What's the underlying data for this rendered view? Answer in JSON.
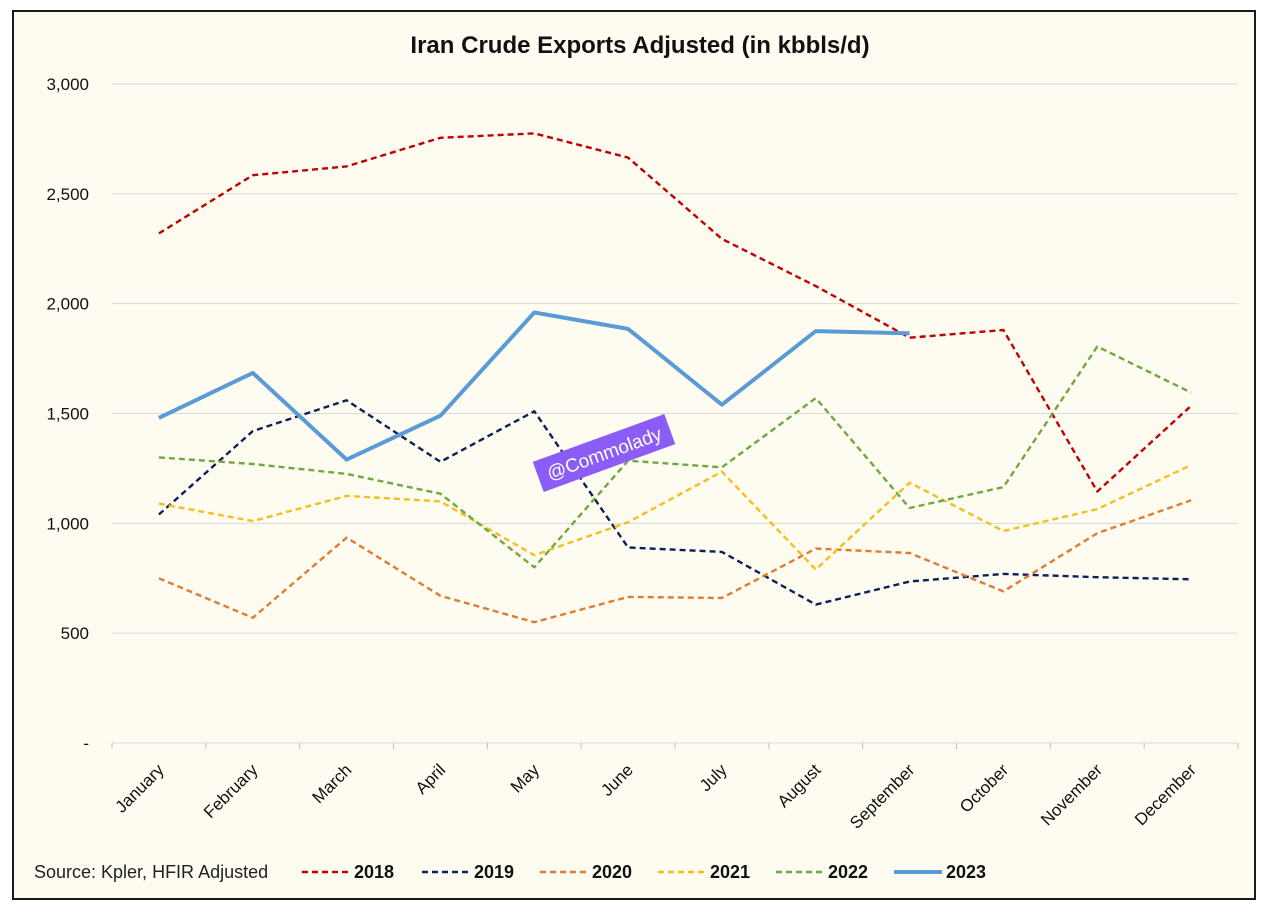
{
  "chart_data": {
    "type": "line",
    "title": "Iran Crude Exports Adjusted (in kbbls/d)",
    "xlabel": "",
    "ylabel": "",
    "source_note": "Source: Kpler, HFIR Adjusted",
    "watermark": "@Commolady",
    "categories": [
      "January",
      "February",
      "March",
      "April",
      "May",
      "June",
      "July",
      "August",
      "September",
      "October",
      "November",
      "December"
    ],
    "ylim": [
      0,
      3000
    ],
    "yticks": [
      {
        "value": 0,
        "label": "-"
      },
      {
        "value": 500,
        "label": "500"
      },
      {
        "value": 1000,
        "label": "1,000"
      },
      {
        "value": 1500,
        "label": "1,500"
      },
      {
        "value": 2000,
        "label": "2,000"
      },
      {
        "value": 2500,
        "label": "2,500"
      },
      {
        "value": 3000,
        "label": "3,000"
      }
    ],
    "grid": true,
    "legend_position": "bottom",
    "series": [
      {
        "name": "2018",
        "color": "#c00000",
        "style": "dashed",
        "values": [
          2320,
          2585,
          2625,
          2755,
          2775,
          2665,
          2295,
          2080,
          1845,
          1880,
          1145,
          1535
        ]
      },
      {
        "name": "2019",
        "color": "#0d1f5c",
        "style": "dashed",
        "values": [
          1040,
          1420,
          1560,
          1280,
          1510,
          890,
          870,
          630,
          735,
          770,
          755,
          745
        ]
      },
      {
        "name": "2020",
        "color": "#e07b32",
        "style": "dashed",
        "values": [
          750,
          570,
          935,
          670,
          550,
          665,
          660,
          885,
          865,
          690,
          955,
          1105
        ]
      },
      {
        "name": "2021",
        "color": "#f5be1e",
        "style": "dashed",
        "values": [
          1090,
          1010,
          1125,
          1100,
          855,
          1005,
          1235,
          790,
          1185,
          965,
          1065,
          1265
        ]
      },
      {
        "name": "2022",
        "color": "#6fa83f",
        "style": "dashed",
        "values": [
          1300,
          1270,
          1225,
          1135,
          800,
          1285,
          1255,
          1570,
          1070,
          1165,
          1805,
          1595
        ]
      },
      {
        "name": "2023",
        "color": "#5b9bd5",
        "style": "solid",
        "values": [
          1480,
          1685,
          1290,
          1490,
          1960,
          1885,
          1540,
          1875,
          1865,
          null,
          null,
          null
        ]
      }
    ]
  }
}
